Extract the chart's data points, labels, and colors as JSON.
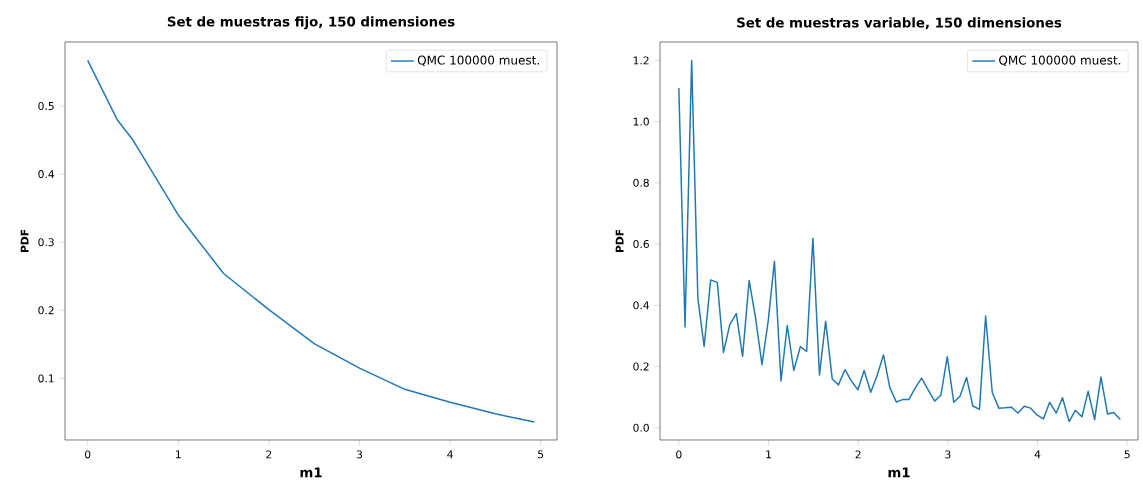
{
  "chart_data": [
    {
      "type": "line",
      "title": "Set de muestras fijo, 150 dimensiones",
      "xlabel": "m1",
      "ylabel": "PDF",
      "series": [
        {
          "name": "QMC 100000  muest.",
          "color": "#1f77b4",
          "x": [
            0,
            0.33,
            0.5,
            1,
            1.5,
            2,
            2.5,
            3,
            3.5,
            4,
            4.5,
            4.93
          ],
          "values": [
            0.567,
            0.479,
            0.45,
            0.34,
            0.254,
            0.201,
            0.151,
            0.115,
            0.084,
            0.065,
            0.048,
            0.036
          ]
        }
      ],
      "xlim": [
        -0.25,
        5.18
      ],
      "ylim": [
        0.0096,
        0.594
      ],
      "xticks": [
        0,
        1,
        2,
        3,
        4,
        5
      ],
      "yticks": [
        0.1,
        0.2,
        0.3,
        0.4,
        0.5
      ],
      "legend": "top right",
      "grid": false
    },
    {
      "type": "line",
      "title": "Set de muestras variable, 150 dimensiones",
      "xlabel": "m1",
      "ylabel": "PDF",
      "series": [
        {
          "name": "QMC 100000  muest.",
          "color": "#1f77b4",
          "x": [
            0,
            0.069,
            0.143,
            0.212,
            0.282,
            0.355,
            0.429,
            0.498,
            0.568,
            0.641,
            0.711,
            0.784,
            0.854,
            0.927,
            0.997,
            1.066,
            1.139,
            1.209,
            1.282,
            1.355,
            1.425,
            1.495,
            1.568,
            1.637,
            1.711,
            1.78,
            1.853,
            1.923,
            1.997,
            2.066,
            2.14,
            2.209,
            2.282,
            2.352,
            2.425,
            2.495,
            2.564,
            2.637,
            2.707,
            2.78,
            2.853,
            2.923,
            2.993,
            3.066,
            3.135,
            3.209,
            3.278,
            3.352,
            3.421,
            3.495,
            3.568,
            3.637,
            3.711,
            3.78,
            3.853,
            3.923,
            3.997,
            4.066,
            4.135,
            4.209,
            4.278,
            4.352,
            4.421,
            4.495,
            4.564,
            4.637,
            4.707,
            4.78,
            4.849,
            4.923
          ],
          "values": [
            1.11,
            0.329,
            1.2,
            0.424,
            0.265,
            0.483,
            0.475,
            0.246,
            0.337,
            0.373,
            0.233,
            0.481,
            0.361,
            0.206,
            0.35,
            0.544,
            0.153,
            0.334,
            0.187,
            0.265,
            0.249,
            0.619,
            0.172,
            0.348,
            0.159,
            0.14,
            0.19,
            0.153,
            0.124,
            0.187,
            0.116,
            0.169,
            0.238,
            0.132,
            0.084,
            0.092,
            0.092,
            0.13,
            0.162,
            0.124,
            0.087,
            0.107,
            0.232,
            0.083,
            0.103,
            0.164,
            0.071,
            0.06,
            0.365,
            0.115,
            0.064,
            0.065,
            0.067,
            0.048,
            0.07,
            0.064,
            0.041,
            0.029,
            0.083,
            0.048,
            0.098,
            0.02,
            0.057,
            0.036,
            0.119,
            0.027,
            0.166,
            0.045,
            0.05,
            0.027
          ]
        }
      ],
      "xlim": [
        -0.21,
        5.12
      ],
      "ylim": [
        -0.04,
        1.26
      ],
      "xticks": [
        0,
        1,
        2,
        3,
        4,
        5
      ],
      "yticks": [
        {
          "value": 0,
          "label": "0.0"
        },
        0.2,
        0.4,
        0.6,
        0.8,
        {
          "value": 1,
          "label": "1.0"
        },
        1.2
      ],
      "legend": "top right",
      "grid": false
    }
  ]
}
